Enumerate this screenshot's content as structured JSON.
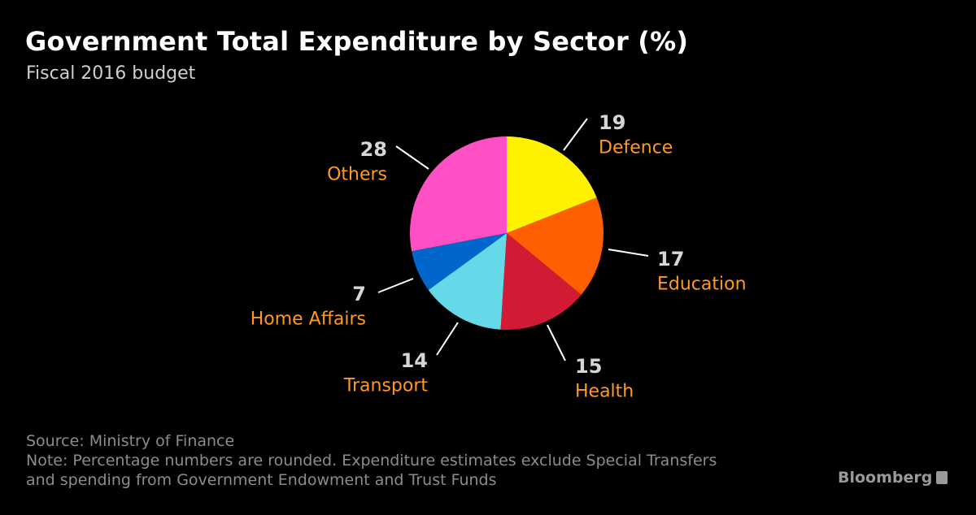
{
  "header": {
    "title": "Government Total Expenditure by Sector (%)",
    "subtitle": "Fiscal 2016 budget"
  },
  "chart_data": {
    "type": "pie",
    "title": "Government Total Expenditure by Sector (%)",
    "subtitle": "Fiscal 2016 budget",
    "start_angle_deg": 0,
    "direction": "clockwise",
    "slices": [
      {
        "label": "Defence",
        "value": 19,
        "value_label": "19",
        "color": "#fff200"
      },
      {
        "label": "Education",
        "value": 17,
        "value_label": "17",
        "color": "#ff5f00"
      },
      {
        "label": "Health",
        "value": 15,
        "value_label": "15",
        "color": "#d21a34"
      },
      {
        "label": "Transport",
        "value": 14,
        "value_label": "14",
        "color": "#66d9e8"
      },
      {
        "label": "Home Affairs",
        "value": 7,
        "value_label": "7",
        "color": "#0066cc"
      },
      {
        "label": "Others",
        "value": 28,
        "value_label": "28",
        "color": "#ff4fc4"
      }
    ],
    "label_color": "#ff9a1f",
    "value_color": "#d6d6d6"
  },
  "footer": {
    "source": "Source: Ministry of Finance",
    "note_line1": "Note: Percentage numbers are rounded. Expenditure estimates exclude Special Transfers",
    "note_line2": "and spending from Government Endowment and Trust Funds",
    "brand": "Bloomberg"
  }
}
